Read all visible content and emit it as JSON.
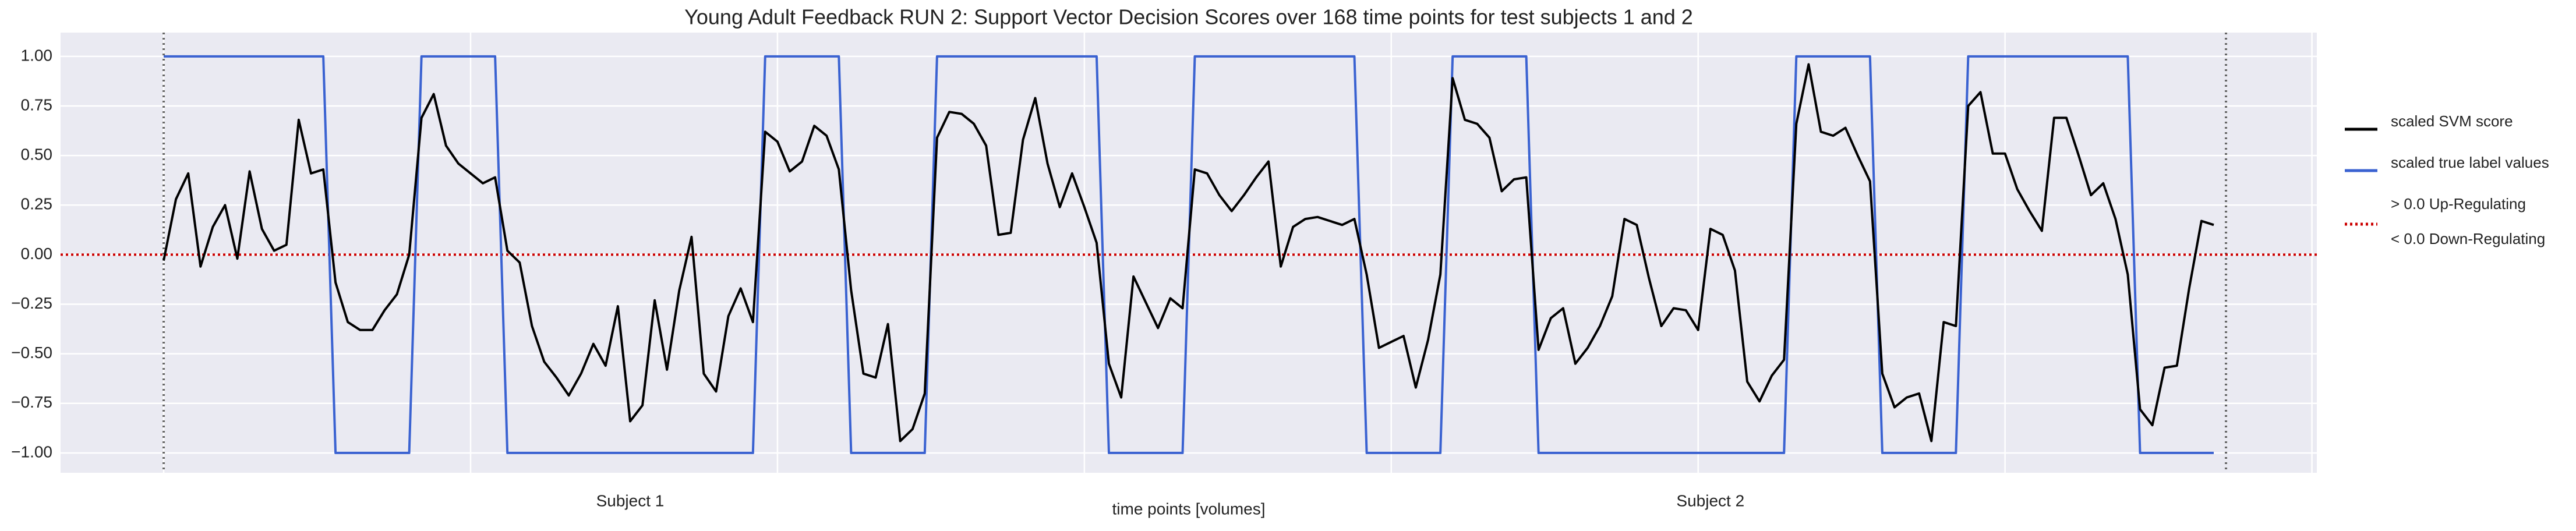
{
  "chart_data": {
    "type": "line",
    "title": "Young Adult Feedback RUN 2: Support Vector Decision Scores over 168 time points for test subjects 1 and 2",
    "x_label": "time points [volumes]",
    "x": [
      0,
      1,
      2,
      3,
      4,
      5,
      6,
      7,
      8,
      9,
      10,
      11,
      12,
      13,
      14,
      15,
      16,
      17,
      18,
      19,
      20,
      21,
      22,
      23,
      24,
      25,
      26,
      27,
      28,
      29,
      30,
      31,
      32,
      33,
      34,
      35,
      36,
      37,
      38,
      39,
      40,
      41,
      42,
      43,
      44,
      45,
      46,
      47,
      48,
      49,
      50,
      51,
      52,
      53,
      54,
      55,
      56,
      57,
      58,
      59,
      60,
      61,
      62,
      63,
      64,
      65,
      66,
      67,
      68,
      69,
      70,
      71,
      72,
      73,
      74,
      75,
      76,
      77,
      78,
      79,
      80,
      81,
      82,
      83,
      84,
      85,
      86,
      87,
      88,
      89,
      90,
      91,
      92,
      93,
      94,
      95,
      96,
      97,
      98,
      99,
      100,
      101,
      102,
      103,
      104,
      105,
      106,
      107,
      108,
      109,
      110,
      111,
      112,
      113,
      114,
      115,
      116,
      117,
      118,
      119,
      120,
      121,
      122,
      123,
      124,
      125,
      126,
      127,
      128,
      129,
      130,
      131,
      132,
      133,
      134,
      135,
      136,
      137,
      138,
      139,
      140,
      141,
      142,
      143,
      144,
      145,
      146,
      147,
      148,
      149,
      150,
      151,
      152,
      153,
      154,
      155,
      156,
      157,
      158,
      159,
      160,
      161,
      162,
      163,
      164,
      165,
      166,
      167
    ],
    "series": [
      {
        "name": "scaled SVM score",
        "color": "#000000",
        "values": [
          -0.03,
          0.28,
          0.41,
          -0.06,
          0.14,
          0.25,
          -0.02,
          0.42,
          0.13,
          0.02,
          0.05,
          0.68,
          0.41,
          0.43,
          -0.14,
          -0.34,
          -0.38,
          -0.38,
          -0.28,
          -0.2,
          0.0,
          0.69,
          0.81,
          0.55,
          0.46,
          0.41,
          0.36,
          0.39,
          0.02,
          -0.04,
          -0.36,
          -0.54,
          -0.62,
          -0.71,
          -0.6,
          -0.45,
          -0.56,
          -0.26,
          -0.84,
          -0.76,
          -0.23,
          -0.58,
          -0.18,
          0.09,
          -0.6,
          -0.69,
          -0.31,
          -0.17,
          -0.34,
          0.62,
          0.57,
          0.42,
          0.47,
          0.65,
          0.6,
          0.43,
          -0.18,
          -0.6,
          -0.62,
          -0.35,
          -0.94,
          -0.88,
          -0.7,
          0.59,
          0.72,
          0.71,
          0.66,
          0.55,
          0.1,
          0.11,
          0.58,
          0.79,
          0.46,
          0.24,
          0.41,
          0.24,
          0.06,
          -0.55,
          -0.72,
          -0.11,
          -0.24,
          -0.37,
          -0.22,
          -0.27,
          0.43,
          0.41,
          0.3,
          0.22,
          0.3,
          0.39,
          0.47,
          -0.06,
          0.14,
          0.18,
          0.19,
          0.17,
          0.15,
          0.18,
          -0.1,
          -0.47,
          -0.44,
          -0.41,
          -0.67,
          -0.43,
          -0.1,
          0.89,
          0.68,
          0.66,
          0.59,
          0.32,
          0.38,
          0.39,
          -0.48,
          -0.32,
          -0.27,
          -0.55,
          -0.47,
          -0.36,
          -0.21,
          0.18,
          0.15,
          -0.12,
          -0.36,
          -0.27,
          -0.28,
          -0.38,
          0.13,
          0.1,
          -0.08,
          -0.64,
          -0.74,
          -0.61,
          -0.53,
          0.66,
          0.96,
          0.62,
          0.6,
          0.64,
          0.5,
          0.37,
          -0.6,
          -0.77,
          -0.72,
          -0.7,
          -0.94,
          -0.34,
          -0.36,
          0.75,
          0.82,
          0.51,
          0.51,
          0.33,
          0.22,
          0.12,
          0.69,
          0.69,
          0.5,
          0.3,
          0.36,
          0.18,
          -0.1,
          -0.78,
          -0.86,
          -0.57,
          -0.56,
          -0.17,
          0.17,
          0.15
        ]
      },
      {
        "name": "scaled true label values",
        "color": "#3a62d1",
        "values": [
          1,
          1,
          1,
          1,
          1,
          1,
          1,
          1,
          1,
          1,
          1,
          1,
          1,
          1,
          -1,
          -1,
          -1,
          -1,
          -1,
          -1,
          -1,
          1,
          1,
          1,
          1,
          1,
          1,
          1,
          -1,
          -1,
          -1,
          -1,
          -1,
          -1,
          -1,
          -1,
          -1,
          -1,
          -1,
          -1,
          -1,
          -1,
          -1,
          -1,
          -1,
          -1,
          -1,
          -1,
          -1,
          1,
          1,
          1,
          1,
          1,
          1,
          1,
          -1,
          -1,
          -1,
          -1,
          -1,
          -1,
          -1,
          1,
          1,
          1,
          1,
          1,
          1,
          1,
          1,
          1,
          1,
          1,
          1,
          1,
          1,
          -1,
          -1,
          -1,
          -1,
          -1,
          -1,
          -1,
          1,
          1,
          1,
          1,
          1,
          1,
          1,
          1,
          1,
          1,
          1,
          1,
          1,
          1,
          -1,
          -1,
          -1,
          -1,
          -1,
          -1,
          -1,
          1,
          1,
          1,
          1,
          1,
          1,
          1,
          -1,
          -1,
          -1,
          -1,
          -1,
          -1,
          -1,
          -1,
          -1,
          -1,
          -1,
          -1,
          -1,
          -1,
          -1,
          -1,
          -1,
          -1,
          -1,
          -1,
          -1,
          1,
          1,
          1,
          1,
          1,
          1,
          1,
          -1,
          -1,
          -1,
          -1,
          -1,
          -1,
          -1,
          1,
          1,
          1,
          1,
          1,
          1,
          1,
          1,
          1,
          1,
          1,
          1,
          1,
          1,
          -1,
          -1,
          -1,
          -1,
          -1,
          -1,
          -1
        ]
      }
    ],
    "threshold": {
      "value": 0.0,
      "color": "#cc0000",
      "labels": [
        "> 0.0 Up-Regulating",
        "< 0.0 Down-Regulating"
      ]
    },
    "vlines": [
      0,
      168
    ],
    "xlim": [
      -8.4,
      175.4
    ],
    "ylim": [
      -1.1,
      1.12
    ],
    "xticks": [
      0,
      25,
      50,
      75,
      100,
      125,
      150,
      175
    ],
    "xtick_labels": [
      {
        "value": 38,
        "label": "Subject 1"
      },
      {
        "value": 126,
        "label": "Subject 2"
      }
    ],
    "yticks": [
      {
        "value": -1,
        "label": "−1.00"
      },
      {
        "value": -0.75,
        "label": "−0.75"
      },
      {
        "value": -0.5,
        "label": "−0.50"
      },
      {
        "value": -0.25,
        "label": "−0.25"
      },
      {
        "value": 0,
        "label": "0.00"
      },
      {
        "value": 0.25,
        "label": "0.25"
      },
      {
        "value": 0.5,
        "label": "0.50"
      },
      {
        "value": 0.75,
        "label": "0.75"
      },
      {
        "value": 1,
        "label": "1.00"
      }
    ],
    "grid": true,
    "legend": "right"
  }
}
